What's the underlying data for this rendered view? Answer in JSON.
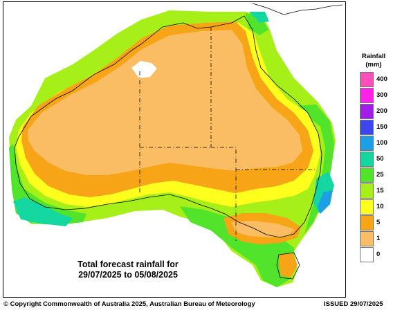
{
  "map": {
    "caption_line1": "Total forecast rainfall for",
    "caption_line2": "29/07/2025 to 05/08/2025",
    "copyright": "© Copyright Commonwealth of Australia 2025, Australian Bureau of Meteorology",
    "issued": "ISSUED 29/07/2025"
  },
  "legend": {
    "title_line1": "Rainfall",
    "title_line2": "(mm)",
    "levels": [
      {
        "label": "400",
        "color": "#ff4fb8"
      },
      {
        "label": "300",
        "color": "#ff22e8"
      },
      {
        "label": "200",
        "color": "#a21ee8"
      },
      {
        "label": "150",
        "color": "#3b46ee"
      },
      {
        "label": "100",
        "color": "#1d9fe8"
      },
      {
        "label": "50",
        "color": "#14d6a0"
      },
      {
        "label": "25",
        "color": "#52e42a"
      },
      {
        "label": "15",
        "color": "#a7ef18"
      },
      {
        "label": "10",
        "color": "#ffff1e"
      },
      {
        "label": "5",
        "color": "#f7a516"
      },
      {
        "label": "1",
        "color": "#fbbd64"
      },
      {
        "label": "0",
        "color": "#ffffff"
      }
    ]
  }
}
